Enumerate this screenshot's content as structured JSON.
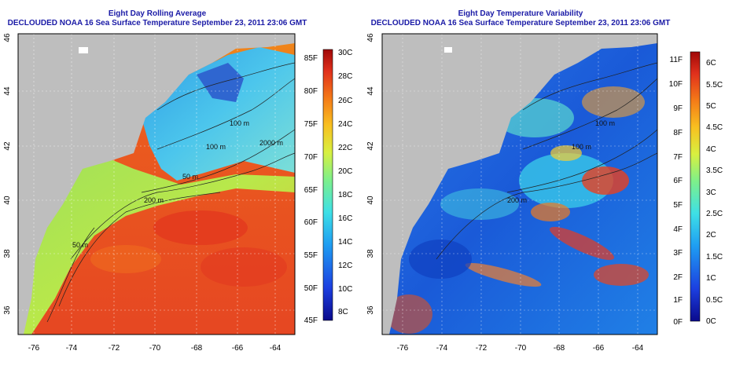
{
  "panels": [
    {
      "title_line1": "Eight Day Rolling Average",
      "title_line2": "DECLOUDED NOAA 16 Sea Surface Temperature September 23, 2011 23:06 GMT",
      "colorbar_left_labels": [
        "85F",
        "80F",
        "75F",
        "70F",
        "65F",
        "60F",
        "55F",
        "50F",
        "45F"
      ],
      "colorbar_right_labels": [
        "30C",
        "28C",
        "26C",
        "24C",
        "22C",
        "20C",
        "18C",
        "16C",
        "14C",
        "12C",
        "10C",
        "8C"
      ]
    },
    {
      "title_line1": "Eight Day Temperature Variability",
      "title_line2": "DECLOUDED NOAA 16 Sea Surface Temperature September 23, 2011 23:06 GMT",
      "colorbar_left_labels": [
        "11F",
        "10F",
        "9F",
        "8F",
        "7F",
        "6F",
        "5F",
        "4F",
        "3F",
        "2F",
        "1F",
        "0F"
      ],
      "colorbar_right_labels": [
        "6C",
        "5.5C",
        "5C",
        "4.5C",
        "4C",
        "3.5C",
        "3C",
        "2.5C",
        "2C",
        "1.5C",
        "1C",
        "0.5C",
        "0C"
      ]
    }
  ],
  "x_tick_labels": [
    "-76",
    "-74",
    "-72",
    "-70",
    "-68",
    "-66",
    "-64"
  ],
  "y_tick_labels": [
    "36",
    "38",
    "40",
    "42",
    "44",
    "46"
  ],
  "contour_labels": {
    "left": [
      "100 m",
      "100 m",
      "50 m",
      "2000 m",
      "200 m",
      "50 m"
    ],
    "right": [
      "100 m",
      "100 m",
      "200 m"
    ]
  },
  "colors": {
    "title": "#1a1aa6",
    "land": "#bebebe",
    "sst_warm": "#e8421e",
    "sst_cool": "#3fb8e8",
    "variability_low": "#1c4fd8"
  }
}
